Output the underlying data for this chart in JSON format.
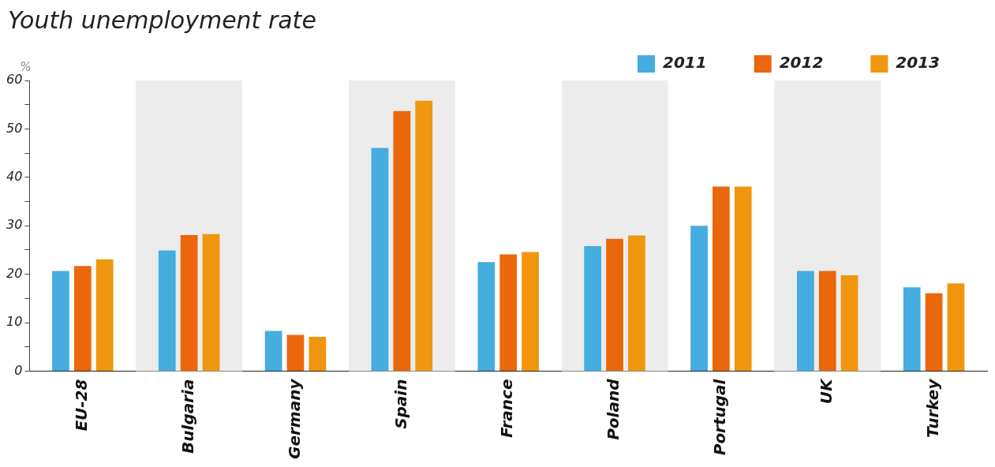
{
  "chart_data": {
    "type": "bar",
    "title": "Youth unemployment rate",
    "ylabel": "%",
    "categories": [
      "EU-28",
      "Bulgaria",
      "Germany",
      "Spain",
      "France",
      "Poland",
      "Portugal",
      "UK",
      "Turkey"
    ],
    "series": [
      {
        "name": "2011",
        "color": "#45addf",
        "values": [
          20.7,
          24.9,
          8.3,
          46.1,
          22.5,
          25.8,
          30.0,
          20.7,
          17.3
        ]
      },
      {
        "name": "2012",
        "color": "#ea670c",
        "values": [
          21.7,
          28.1,
          7.5,
          53.7,
          24.1,
          27.3,
          38.1,
          20.7,
          16.1
        ]
      },
      {
        "name": "2013",
        "color": "#f0960e",
        "values": [
          23.1,
          28.3,
          7.1,
          55.8,
          24.6,
          28.0,
          38.1,
          19.8,
          18.1
        ]
      }
    ],
    "ylim": [
      0,
      60
    ],
    "yticks": [
      0,
      {
        "value": 5,
        "label": null
      },
      10,
      {
        "value": 15,
        "label": null
      },
      20,
      {
        "value": 25,
        "label": null
      },
      30,
      {
        "value": 35,
        "label": null
      },
      40,
      {
        "value": 45,
        "label": null
      },
      50,
      {
        "value": 55,
        "label": null
      },
      60
    ],
    "bands": [
      {
        "axis": "x",
        "from": "Bulgaria",
        "to": "Bulgaria",
        "color": "#ececec"
      },
      {
        "axis": "x",
        "from": "Spain",
        "to": "Spain",
        "color": "#ececec"
      },
      {
        "axis": "x",
        "from": "Poland",
        "to": "Poland",
        "color": "#ececec"
      },
      {
        "axis": "x",
        "from": "UK",
        "to": "UK",
        "color": "#ececec"
      }
    ],
    "grid": false,
    "legend": "top right"
  }
}
